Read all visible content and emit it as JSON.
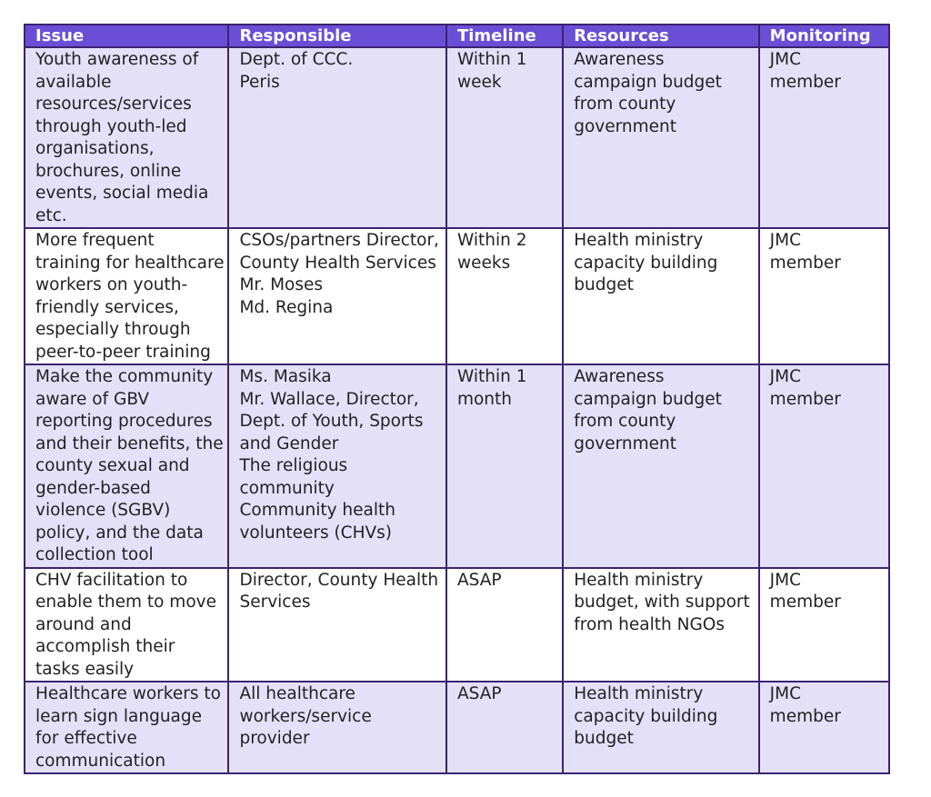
{
  "table": {
    "headers": [
      "Issue",
      "Responsible",
      "Timeline",
      "Resources",
      "Monitoring"
    ],
    "rows": [
      [
        [
          "Youth awareness of",
          "available",
          "resources/services",
          "through youth-led",
          "organisations,",
          "brochures, online",
          "events, social media",
          "etc."
        ],
        [
          "Dept. of CCC.",
          "Peris"
        ],
        [
          "Within 1",
          "week"
        ],
        [
          "Awareness",
          "campaign budget",
          "from county",
          "government"
        ],
        [
          "JMC",
          "member"
        ]
      ],
      [
        [
          "More frequent",
          "training for healthcare",
          "workers on youth-",
          "friendly services,",
          "especially through",
          "peer-to-peer training"
        ],
        [
          "CSOs/partners Director,",
          "County Health Services",
          "Mr. Moses",
          "Md. Regina"
        ],
        [
          "Within 2",
          "weeks"
        ],
        [
          "Health ministry",
          "capacity building",
          "budget"
        ],
        [
          "JMC",
          "member"
        ]
      ],
      [
        [
          "Make the community",
          "aware of GBV",
          "reporting procedures",
          "and their benefits, the",
          "county sexual and",
          "gender-based",
          "violence (SGBV)",
          "policy, and the data",
          "collection tool"
        ],
        [
          "Ms. Masika",
          "Mr. Wallace, Director,",
          "Dept. of Youth, Sports",
          "and Gender",
          "The religious",
          "community",
          "Community health",
          "volunteers (CHVs)"
        ],
        [
          "Within 1",
          "month"
        ],
        [
          "Awareness",
          "campaign budget",
          "from county",
          "government"
        ],
        [
          "JMC",
          "member"
        ]
      ],
      [
        [
          "CHV facilitation to",
          "enable them to move",
          "around and",
          "accomplish their",
          "tasks easily"
        ],
        [
          "Director, County Health",
          "Services"
        ],
        [
          "ASAP"
        ],
        [
          "Health ministry",
          "budget, with support",
          "from health NGOs"
        ],
        [
          "JMC",
          "member"
        ]
      ],
      [
        [
          "Healthcare workers to",
          "learn sign language",
          "for effective",
          "communication"
        ],
        [
          "All healthcare",
          "workers/service",
          "provider"
        ],
        [
          "ASAP"
        ],
        [
          "Health ministry",
          "capacity building",
          "budget"
        ],
        [
          "JMC",
          "member"
        ]
      ]
    ]
  },
  "colors": {
    "header_background": "#6a4fd6",
    "header_text": "#ffffff",
    "shaded_row": "#e4e0f8",
    "plain_row": "#ffffff",
    "border": "#3b2470"
  }
}
